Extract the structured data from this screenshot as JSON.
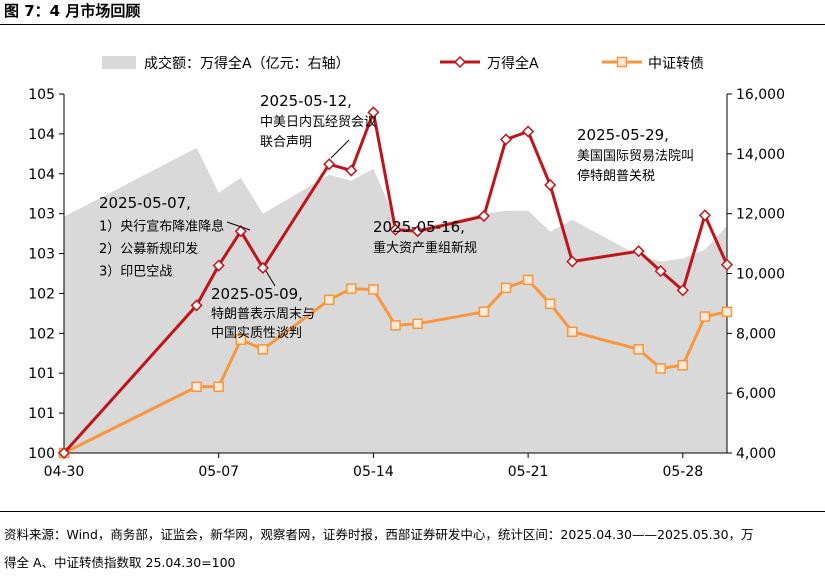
{
  "figure": {
    "title": "图 7：4 月市场回顾",
    "source_line1": "资料来源：Wind，商务部，证监会，新华网，观察者网，证券时报，西部证券研发中心，统计区间：2025.04.30——2025.05.30，万",
    "source_line2": "得全 A、中证转债指数取 25.04.30=100"
  },
  "chart_data": {
    "type": "line",
    "title": "",
    "xlabel": "",
    "ylabel": "",
    "x": [
      "2025-04-30",
      "2025-05-06",
      "2025-05-07",
      "2025-05-08",
      "2025-05-09",
      "2025-05-12",
      "2025-05-13",
      "2025-05-14",
      "2025-05-15",
      "2025-05-16",
      "2025-05-19",
      "2025-05-20",
      "2025-05-21",
      "2025-05-22",
      "2025-05-23",
      "2025-05-26",
      "2025-05-27",
      "2025-05-28",
      "2025-05-29",
      "2025-05-30"
    ],
    "x_ticks": [
      "04-30",
      "05-07",
      "05-14",
      "05-21",
      "05-28"
    ],
    "x_tick_index": [
      0,
      7,
      14,
      21,
      28
    ],
    "x_day_offset": [
      0,
      6,
      7,
      8,
      9,
      12,
      13,
      14,
      15,
      16,
      19,
      20,
      21,
      22,
      23,
      26,
      27,
      28,
      29,
      30
    ],
    "y_left": {
      "ylim": [
        100,
        104.5
      ],
      "ticks": [
        "100",
        "101",
        "101",
        "102",
        "102",
        "103",
        "103",
        "104",
        "104",
        "105"
      ]
    },
    "y_right": {
      "ylim": [
        4000,
        16000
      ],
      "ticks": [
        "4,000",
        "6,000",
        "8,000",
        "10,000",
        "12,000",
        "14,000",
        "16,000"
      ]
    },
    "series": [
      {
        "name": "成交额：万得全A（亿元：右轴）",
        "kind": "area",
        "axis": "right",
        "color": "#d9d9d9",
        "values": [
          11900,
          14200,
          12700,
          13200,
          12000,
          13300,
          13100,
          13500,
          11800,
          11500,
          12000,
          12100,
          12100,
          11400,
          11800,
          10600,
          10400,
          10500,
          10800,
          11600
        ]
      },
      {
        "name": "万得全A",
        "kind": "line",
        "axis": "left",
        "color": "#c0141c",
        "marker": "diamond",
        "values": [
          100.0,
          101.85,
          102.35,
          102.78,
          102.32,
          103.62,
          103.54,
          104.27,
          102.8,
          102.78,
          102.97,
          103.93,
          104.03,
          103.36,
          102.4,
          102.53,
          102.28,
          102.04,
          102.98,
          102.36
        ]
      },
      {
        "name": "中证转债",
        "kind": "line",
        "axis": "left",
        "color": "#f7963c",
        "marker": "square",
        "values": [
          100.0,
          100.83,
          100.83,
          101.42,
          101.3,
          101.92,
          102.06,
          102.05,
          101.6,
          101.62,
          101.77,
          102.07,
          102.17,
          101.87,
          101.52,
          101.3,
          101.06,
          101.1,
          101.71,
          101.77
        ]
      }
    ],
    "legend": {
      "placement": "top"
    },
    "annotations": [
      {
        "id": "0507",
        "lines": [
          "2025-05-07,",
          "1）央行宣布降准降息",
          "2）公募新规印发",
          "3）印巴空战"
        ]
      },
      {
        "id": "0509",
        "lines": [
          "2025-05-09,",
          "特朗普表示周末与",
          "中国实质性谈判"
        ]
      },
      {
        "id": "0512",
        "lines": [
          "2025-05-12,",
          "中美日内瓦经贸会议",
          "联合声明"
        ]
      },
      {
        "id": "0516",
        "lines": [
          "2025-05-16,",
          "重大资产重组新规"
        ]
      },
      {
        "id": "0529",
        "lines": [
          "2025-05-29,",
          "美国国际贸易法院叫",
          "停特朗普关税"
        ]
      }
    ]
  }
}
